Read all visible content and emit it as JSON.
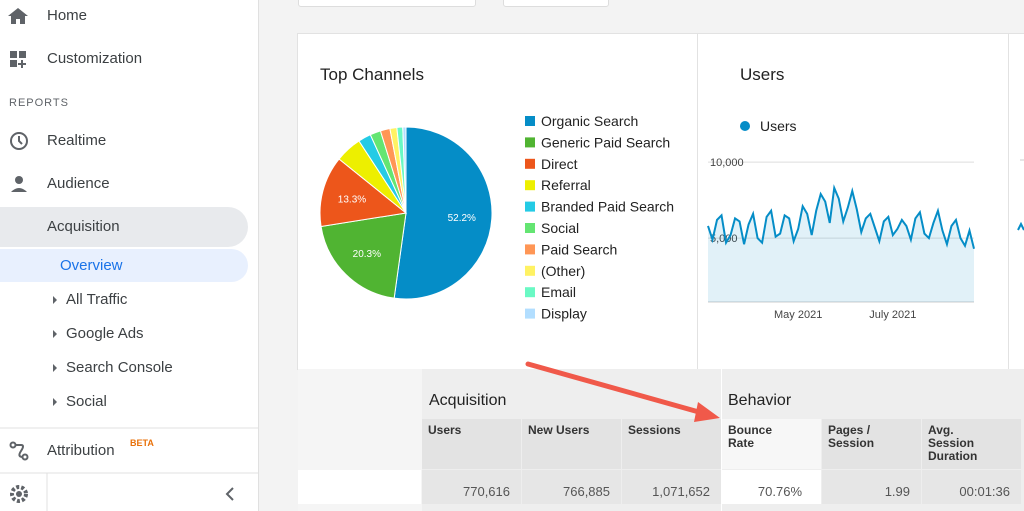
{
  "sidebar": {
    "top_items": [
      "Home",
      "Customization"
    ],
    "section": "REPORTS",
    "reports": [
      "Realtime",
      "Audience",
      "Acquisition"
    ],
    "subitems": [
      "Overview",
      "All Traffic",
      "Google Ads",
      "Search Console",
      "Social"
    ],
    "attribution": "Attribution",
    "attribution_badge": "BETA"
  },
  "top_channels": {
    "type": "pie",
    "title": "Top Channels",
    "categories": [
      "Organic Search",
      "Generic Paid Search",
      "Direct",
      "Referral",
      "Branded Paid Search",
      "Social",
      "Paid Search",
      "(Other)",
      "Email",
      "Display"
    ],
    "values": [
      52.2,
      20.3,
      13.3,
      5.0,
      2.4,
      2.0,
      1.8,
      1.3,
      1.1,
      0.6
    ],
    "value_labels": [
      "52.2%",
      "20.3%",
      "13.3%",
      null,
      null,
      null,
      null,
      null,
      null,
      null
    ],
    "colors": [
      "#058dc7",
      "#50b432",
      "#ed561b",
      "#edef00",
      "#24cbe5",
      "#64e572",
      "#ff9655",
      "#fff263",
      "#6af9c4",
      "#b2deff"
    ]
  },
  "users_chart": {
    "type": "line",
    "title": "Users",
    "series": [
      {
        "name": "Users",
        "color": "#058dc7",
        "values": [
          5800,
          4900,
          6200,
          6500,
          4700,
          5200,
          6300,
          6100,
          4600,
          5900,
          6600,
          5000,
          4700,
          6400,
          6800,
          5100,
          5300,
          6500,
          6300,
          4800,
          5600,
          7100,
          6600,
          5200,
          6800,
          7900,
          7400,
          6000,
          8300,
          7600,
          6100,
          7000,
          8100,
          6900,
          5400,
          6300,
          6600,
          5700,
          4800,
          6100,
          6400,
          5200,
          5600,
          6200,
          5800,
          4900,
          6300,
          6700,
          5300,
          5000,
          6000,
          6800,
          5500,
          4600,
          5800,
          6200,
          5000,
          4500,
          5500,
          4300
        ]
      }
    ],
    "xlim": [
      0,
      59
    ],
    "xticks": [
      {
        "value": 20,
        "label": "May 2021"
      },
      {
        "value": 41,
        "label": "July 2021"
      }
    ],
    "ylim": [
      800,
      10600
    ],
    "yticks": [
      {
        "value": 5000,
        "label": "5,000"
      },
      {
        "value": 10000,
        "label": "10,000"
      }
    ],
    "grid": true
  },
  "table": {
    "groups": [
      "Acquisition",
      "Behavior"
    ],
    "columns": [
      "Users",
      "New Users",
      "Sessions",
      "Bounce Rate",
      "Pages / Session",
      "Avg. Session Duration"
    ],
    "row": [
      "770,616",
      "766,885",
      "1,071,652",
      "70.76%",
      "1.99",
      "00:01:36"
    ]
  }
}
